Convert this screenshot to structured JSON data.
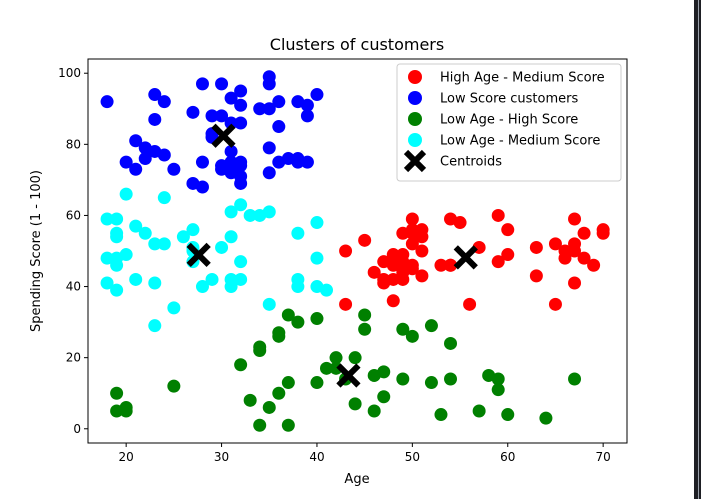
{
  "chart_data": {
    "type": "scatter",
    "title": "Clusters of customers",
    "xlabel": "Age",
    "ylabel": "Spending Score (1 - 100)",
    "xlim": [
      16,
      72.5
    ],
    "ylim": [
      -4,
      104
    ],
    "x_ticks": [
      20,
      30,
      40,
      50,
      60,
      70
    ],
    "y_ticks": [
      0,
      20,
      40,
      60,
      80,
      100
    ],
    "grid": false,
    "legend_position": "top-right",
    "series": [
      {
        "name": "High Age - Medium Score",
        "color": "#ff0000",
        "marker": "circle",
        "points": [
          [
            43,
            50
          ],
          [
            45,
            53
          ],
          [
            46,
            44
          ],
          [
            47,
            41
          ],
          [
            47,
            47
          ],
          [
            47,
            42
          ],
          [
            48,
            46
          ],
          [
            48,
            49
          ],
          [
            48,
            36
          ],
          [
            48,
            42
          ],
          [
            49,
            47
          ],
          [
            49,
            55
          ],
          [
            49,
            42
          ],
          [
            49,
            44
          ],
          [
            49,
            49
          ],
          [
            50,
            59
          ],
          [
            50,
            52
          ],
          [
            50,
            55
          ],
          [
            50,
            56
          ],
          [
            50,
            46
          ],
          [
            50,
            45
          ],
          [
            51,
            56
          ],
          [
            51,
            54
          ],
          [
            51,
            43
          ],
          [
            51,
            50
          ],
          [
            53,
            46
          ],
          [
            54,
            59
          ],
          [
            54,
            46
          ],
          [
            55,
            58
          ],
          [
            56,
            35
          ],
          [
            57,
            51
          ],
          [
            59,
            60
          ],
          [
            59,
            47
          ],
          [
            60,
            56
          ],
          [
            60,
            49
          ],
          [
            63,
            43
          ],
          [
            63,
            51
          ],
          [
            65,
            52
          ],
          [
            65,
            35
          ],
          [
            66,
            48
          ],
          [
            67,
            59
          ],
          [
            67,
            52
          ],
          [
            67,
            41
          ],
          [
            67,
            50
          ],
          [
            68,
            48
          ],
          [
            68,
            55
          ],
          [
            69,
            46
          ],
          [
            70,
            56
          ],
          [
            70,
            55
          ],
          [
            66,
            50
          ],
          [
            43,
            35
          ],
          [
            54,
            46
          ]
        ]
      },
      {
        "name": "Low Score customers",
        "color": "#0000ff",
        "marker": "circle",
        "points": [
          [
            18,
            92
          ],
          [
            20,
            75
          ],
          [
            21,
            73
          ],
          [
            21,
            81
          ],
          [
            22,
            76
          ],
          [
            22,
            79
          ],
          [
            23,
            87
          ],
          [
            23,
            94
          ],
          [
            23,
            78
          ],
          [
            24,
            92
          ],
          [
            24,
            77
          ],
          [
            25,
            73
          ],
          [
            27,
            89
          ],
          [
            27,
            69
          ],
          [
            28,
            97
          ],
          [
            28,
            75
          ],
          [
            28,
            68
          ],
          [
            29,
            88
          ],
          [
            29,
            83
          ],
          [
            29,
            82
          ],
          [
            30,
            97
          ],
          [
            30,
            73
          ],
          [
            30,
            74
          ],
          [
            30,
            88
          ],
          [
            31,
            93
          ],
          [
            31,
            78
          ],
          [
            31,
            72
          ],
          [
            31,
            86
          ],
          [
            31,
            75
          ],
          [
            32,
            95
          ],
          [
            32,
            91
          ],
          [
            32,
            86
          ],
          [
            32,
            75
          ],
          [
            32,
            74
          ],
          [
            32,
            71
          ],
          [
            32,
            69
          ],
          [
            34,
            90
          ],
          [
            35,
            99
          ],
          [
            35,
            97
          ],
          [
            35,
            90
          ],
          [
            35,
            79
          ],
          [
            35,
            72
          ],
          [
            36,
            92
          ],
          [
            36,
            85
          ],
          [
            36,
            75
          ],
          [
            37,
            76
          ],
          [
            38,
            92
          ],
          [
            38,
            76
          ],
          [
            38,
            75
          ],
          [
            39,
            91
          ],
          [
            39,
            88
          ],
          [
            39,
            75
          ],
          [
            40,
            94
          ]
        ]
      },
      {
        "name": "Low Age - High Score",
        "color": "#008000",
        "marker": "circle",
        "points": [
          [
            19,
            5
          ],
          [
            19,
            10
          ],
          [
            20,
            5
          ],
          [
            20,
            6
          ],
          [
            25,
            12
          ],
          [
            32,
            18
          ],
          [
            33,
            8
          ],
          [
            34,
            1
          ],
          [
            34,
            22
          ],
          [
            34,
            23
          ],
          [
            35,
            6
          ],
          [
            36,
            10
          ],
          [
            36,
            26
          ],
          [
            36,
            27
          ],
          [
            37,
            32
          ],
          [
            37,
            13
          ],
          [
            37,
            1
          ],
          [
            38,
            30
          ],
          [
            40,
            31
          ],
          [
            40,
            13
          ],
          [
            41,
            17
          ],
          [
            42,
            17
          ],
          [
            42,
            20
          ],
          [
            43,
            14
          ],
          [
            44,
            7
          ],
          [
            44,
            20
          ],
          [
            45,
            28
          ],
          [
            45,
            32
          ],
          [
            46,
            15
          ],
          [
            46,
            5
          ],
          [
            47,
            16
          ],
          [
            47,
            9
          ],
          [
            49,
            14
          ],
          [
            49,
            28
          ],
          [
            50,
            26
          ],
          [
            52,
            13
          ],
          [
            52,
            29
          ],
          [
            53,
            4
          ],
          [
            54,
            24
          ],
          [
            54,
            14
          ],
          [
            57,
            5
          ],
          [
            58,
            15
          ],
          [
            59,
            14
          ],
          [
            59,
            11
          ],
          [
            60,
            4
          ],
          [
            64,
            3
          ],
          [
            67,
            14
          ]
        ]
      },
      {
        "name": "Low Age - Medium Score",
        "color": "#00ffff",
        "marker": "circle",
        "points": [
          [
            18,
            59
          ],
          [
            18,
            48
          ],
          [
            18,
            41
          ],
          [
            19,
            59
          ],
          [
            19,
            55
          ],
          [
            19,
            54
          ],
          [
            19,
            48
          ],
          [
            19,
            46
          ],
          [
            19,
            39
          ],
          [
            20,
            49
          ],
          [
            20,
            66
          ],
          [
            21,
            42
          ],
          [
            21,
            57
          ],
          [
            22,
            55
          ],
          [
            23,
            52
          ],
          [
            23,
            41
          ],
          [
            23,
            29
          ],
          [
            24,
            52
          ],
          [
            24,
            65
          ],
          [
            25,
            34
          ],
          [
            26,
            54
          ],
          [
            27,
            51
          ],
          [
            27,
            47
          ],
          [
            27,
            56
          ],
          [
            27,
            50
          ],
          [
            28,
            40
          ],
          [
            29,
            42
          ],
          [
            30,
            51
          ],
          [
            31,
            61
          ],
          [
            31,
            54
          ],
          [
            31,
            42
          ],
          [
            31,
            40
          ],
          [
            32,
            63
          ],
          [
            32,
            47
          ],
          [
            32,
            42
          ],
          [
            33,
            60
          ],
          [
            34,
            60
          ],
          [
            35,
            61
          ],
          [
            35,
            35
          ],
          [
            38,
            55
          ],
          [
            38,
            42
          ],
          [
            38,
            40
          ],
          [
            40,
            58
          ],
          [
            40,
            48
          ],
          [
            40,
            40
          ],
          [
            41,
            39
          ]
        ]
      },
      {
        "name": "Centroids",
        "color": "#000000",
        "marker": "x",
        "points": [
          [
            55.6,
            48.2
          ],
          [
            30.2,
            82.4
          ],
          [
            43.3,
            15.0
          ],
          [
            27.6,
            48.9
          ]
        ]
      }
    ]
  }
}
